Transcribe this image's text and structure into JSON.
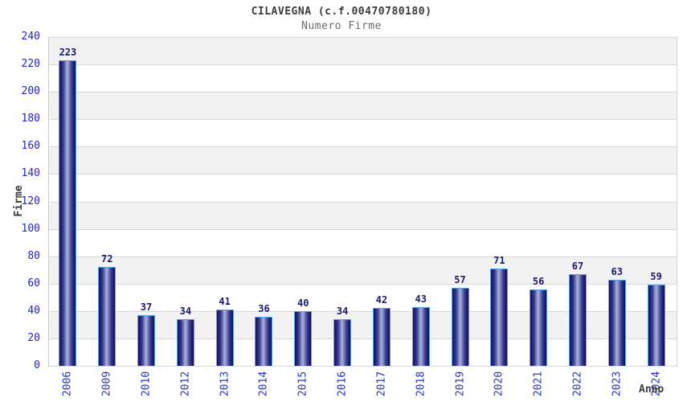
{
  "title": "CILAVEGNA (c.f.00470780180)",
  "subtitle": "Numero Firme",
  "chart_data": {
    "type": "bar",
    "title": "CILAVEGNA (c.f.00470780180)",
    "subtitle": "Numero Firme",
    "categories": [
      "2006",
      "2009",
      "2010",
      "2012",
      "2013",
      "2014",
      "2015",
      "2016",
      "2017",
      "2018",
      "2019",
      "2020",
      "2021",
      "2022",
      "2023",
      "2024"
    ],
    "values": [
      223,
      72,
      37,
      34,
      41,
      36,
      40,
      34,
      42,
      43,
      57,
      71,
      56,
      67,
      63,
      59
    ],
    "xlabel": "Anno",
    "ylabel": "Firme",
    "ylim": [
      0,
      240
    ],
    "ytick_step": 20,
    "grid": true,
    "legend": "none",
    "band_colors": [
      "#f2f2f2",
      "#ffffff"
    ],
    "colors": {
      "bar_border": "#56a2e2",
      "bar_edge_dark": "#161668",
      "bar_center_light": "#aab1dc",
      "ytick_label": "#2222cc",
      "xtick_label": "#2233cc",
      "value_label": "#191970",
      "title": "#3a3a3a",
      "subtitle": "#6a6a6a",
      "axis_title": "#3a3a3a",
      "gridline": "#d8d8d8"
    }
  }
}
